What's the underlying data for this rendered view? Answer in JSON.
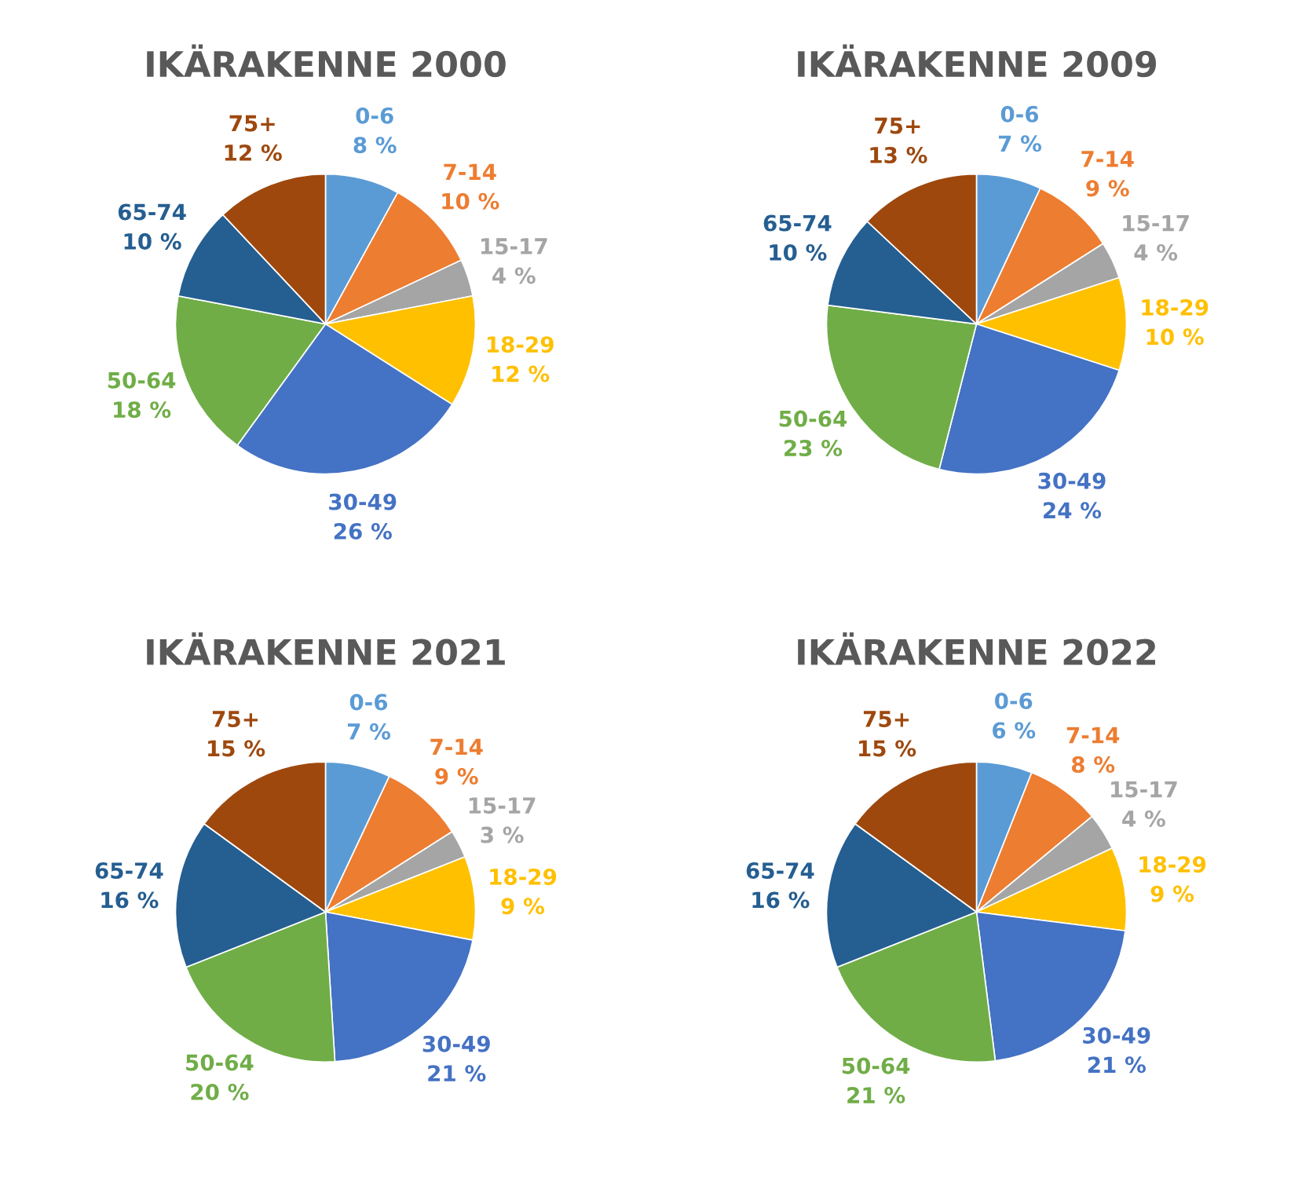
{
  "chart_data": [
    {
      "type": "pie",
      "title": "IKÄRAKENNE 2000",
      "categories": [
        "0-6",
        "7-14",
        "15-17",
        "18-29",
        "30-49",
        "50-64",
        "65-74",
        "75+"
      ],
      "values": [
        8,
        10,
        4,
        12,
        26,
        18,
        10,
        12
      ],
      "value_labels": [
        "8 %",
        "10 %",
        "4 %",
        "12 %",
        "26 %",
        "18 %",
        "10 %",
        "12 %"
      ],
      "colors": [
        "#5b9bd5",
        "#ed7d31",
        "#a5a5a5",
        "#ffc000",
        "#4472c4",
        "#70ad47",
        "#255e91",
        "#9e480e"
      ]
    },
    {
      "type": "pie",
      "title": "IKÄRAKENNE 2009",
      "categories": [
        "0-6",
        "7-14",
        "15-17",
        "18-29",
        "30-49",
        "50-64",
        "65-74",
        "75+"
      ],
      "values": [
        7,
        9,
        4,
        10,
        24,
        23,
        10,
        13
      ],
      "value_labels": [
        "7 %",
        "9 %",
        "4 %",
        "10 %",
        "24 %",
        "23 %",
        "10 %",
        "13 %"
      ],
      "colors": [
        "#5b9bd5",
        "#ed7d31",
        "#a5a5a5",
        "#ffc000",
        "#4472c4",
        "#70ad47",
        "#255e91",
        "#9e480e"
      ]
    },
    {
      "type": "pie",
      "title": "IKÄRAKENNE 2021",
      "categories": [
        "0-6",
        "7-14",
        "15-17",
        "18-29",
        "30-49",
        "50-64",
        "65-74",
        "75+"
      ],
      "values": [
        7,
        9,
        3,
        9,
        21,
        20,
        16,
        15
      ],
      "value_labels": [
        "7 %",
        "9 %",
        "3 %",
        "9 %",
        "21 %",
        "20 %",
        "16 %",
        "15 %"
      ],
      "colors": [
        "#5b9bd5",
        "#ed7d31",
        "#a5a5a5",
        "#ffc000",
        "#4472c4",
        "#70ad47",
        "#255e91",
        "#9e480e"
      ]
    },
    {
      "type": "pie",
      "title": "IKÄRAKENNE 2022",
      "categories": [
        "0-6",
        "7-14",
        "15-17",
        "18-29",
        "30-49",
        "50-64",
        "65-74",
        "75+"
      ],
      "values": [
        6,
        8,
        4,
        9,
        21,
        21,
        16,
        15
      ],
      "value_labels": [
        "6 %",
        "8 %",
        "4 %",
        "9 %",
        "21 %",
        "21 %",
        "16 %",
        "15 %"
      ],
      "colors": [
        "#5b9bd5",
        "#ed7d31",
        "#a5a5a5",
        "#ffc000",
        "#4472c4",
        "#70ad47",
        "#255e91",
        "#9e480e"
      ]
    }
  ]
}
